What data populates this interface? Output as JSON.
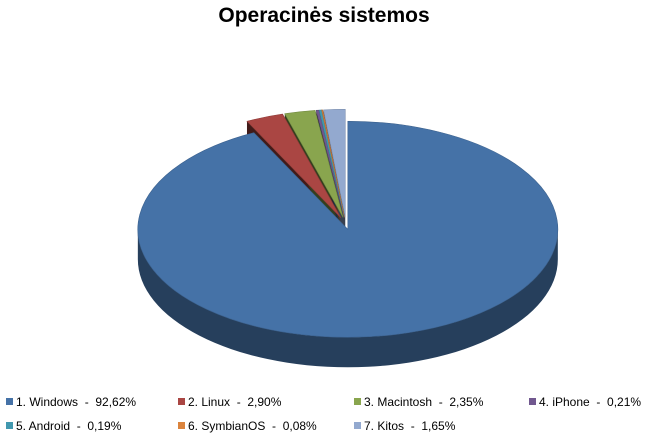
{
  "chart_data": {
    "type": "pie",
    "style": "3d-exploded",
    "title": "Operacinės sistemos",
    "legend_position": "bottom",
    "slices": [
      {
        "label": "1. Windows",
        "value": 92.62,
        "value_label": "92,62%",
        "color": "#4572A7"
      },
      {
        "label": "2. Linux",
        "value": 2.9,
        "value_label": "2,90%",
        "color": "#AA4643"
      },
      {
        "label": "3. Macintosh",
        "value": 2.35,
        "value_label": "2,35%",
        "color": "#89A54E"
      },
      {
        "label": "4. iPhone",
        "value": 0.21,
        "value_label": "0,21%",
        "color": "#71588F"
      },
      {
        "label": "5. Android",
        "value": 0.19,
        "value_label": "0,19%",
        "color": "#4198AF"
      },
      {
        "label": "6. SymbianOS",
        "value": 0.08,
        "value_label": "0,08%",
        "color": "#DB843D"
      },
      {
        "label": "7. Kitos",
        "value": 1.65,
        "value_label": "1,65%",
        "color": "#93A9CF"
      }
    ]
  }
}
